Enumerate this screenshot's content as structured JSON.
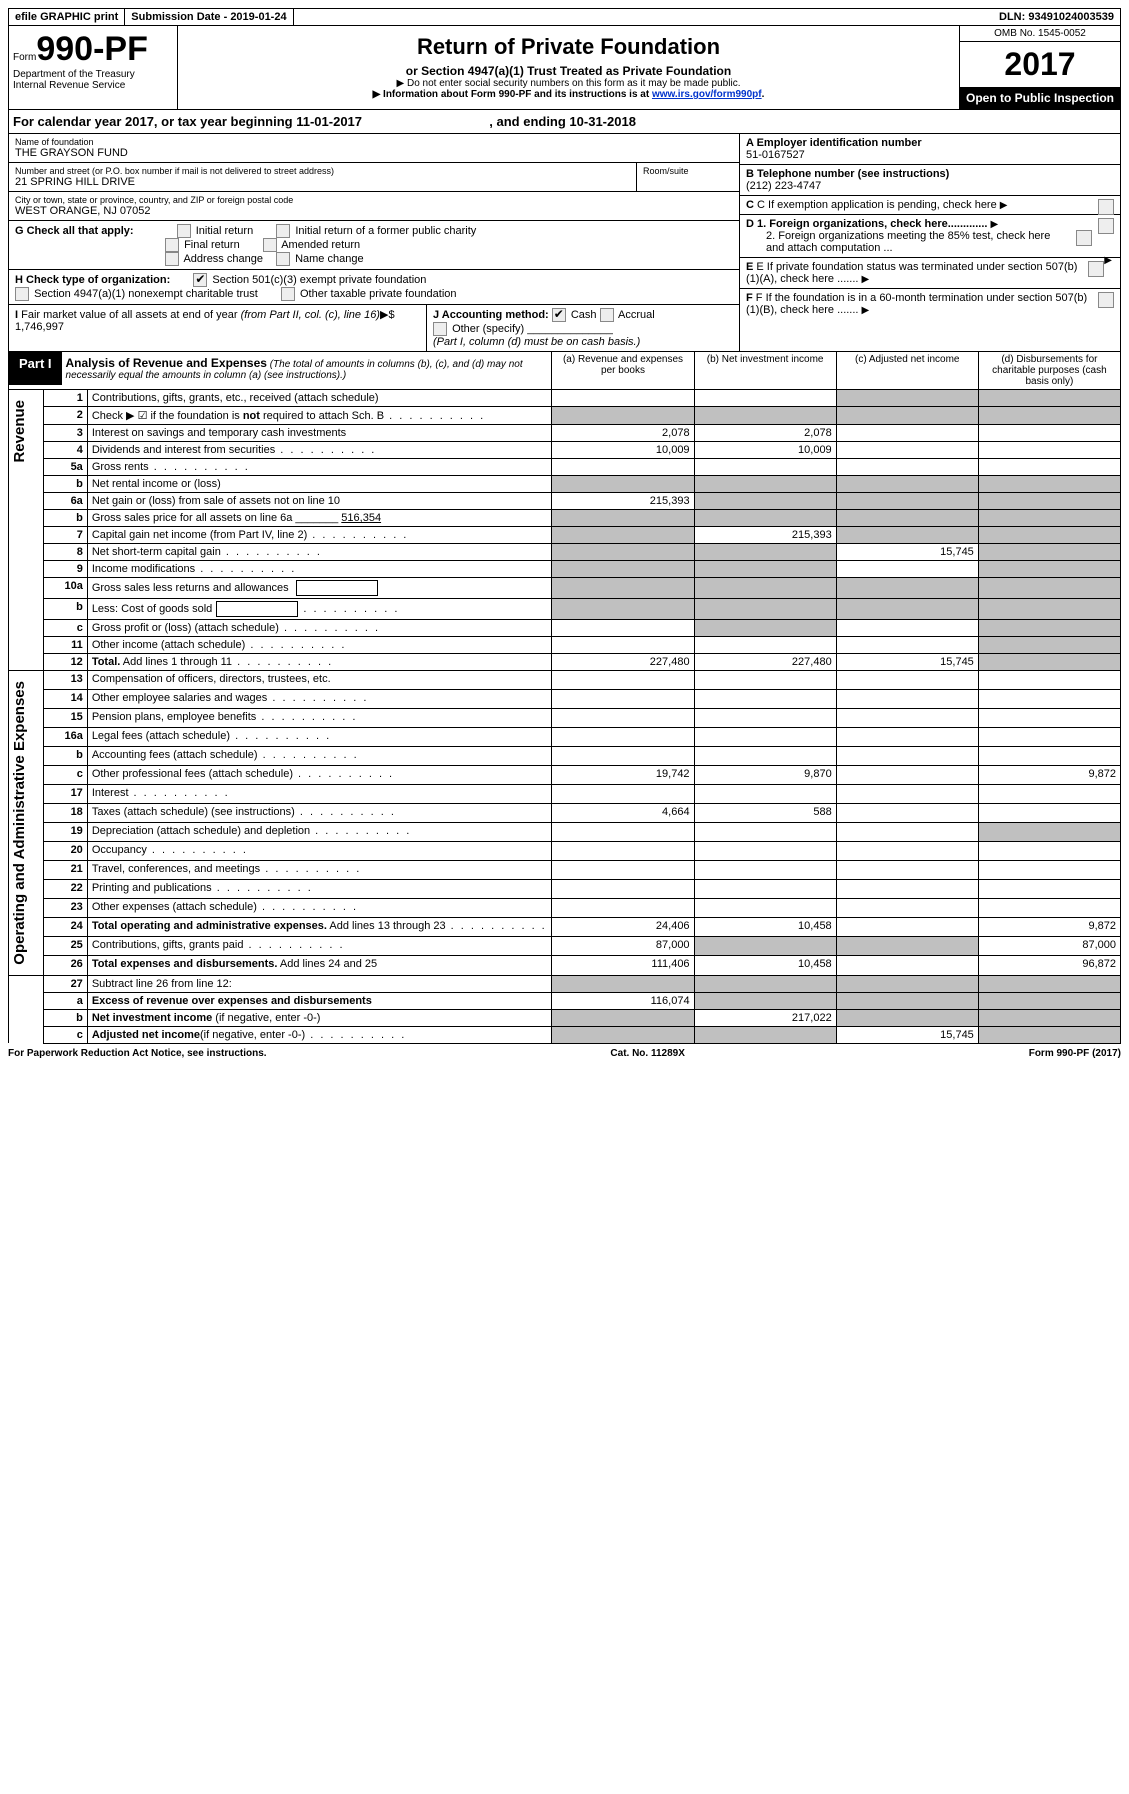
{
  "topbar": {
    "efile": "efile GRAPHIC print",
    "submission": "Submission Date - 2019-01-24",
    "dln": "DLN: 93491024003539"
  },
  "header": {
    "form_prefix": "Form",
    "form_number": "990-PF",
    "dept": "Department of the Treasury",
    "irs": "Internal Revenue Service",
    "title": "Return of Private Foundation",
    "subtitle": "or Section 4947(a)(1) Trust Treated as Private Foundation",
    "note1": "▶ Do not enter social security numbers on this form as it may be made public.",
    "note2_prefix": "▶ Information about Form 990-PF and its instructions is at ",
    "note2_link": "www.irs.gov/form990pf",
    "omb": "OMB No. 1545-0052",
    "year": "2017",
    "open": "Open to Public Inspection"
  },
  "calyear": {
    "text_a": "For calendar year 2017, or tax year beginning 11-01-2017",
    "text_b": ", and ending 10-31-2018"
  },
  "info": {
    "name_label": "Name of foundation",
    "name": "THE GRAYSON FUND",
    "addr_label": "Number and street (or P.O. box number if mail is not delivered to street address)",
    "room_label": "Room/suite",
    "addr": "21 SPRING HILL DRIVE",
    "city_label": "City or town, state or province, country, and ZIP or foreign postal code",
    "city": "WEST ORANGE, NJ  07052",
    "g_label": "G Check all that apply:",
    "g_opts": [
      "Initial return",
      "Initial return of a former public charity",
      "Final return",
      "Amended return",
      "Address change",
      "Name change"
    ],
    "h_label": "H Check type of organization:",
    "h_opt1": "Section 501(c)(3) exempt private foundation",
    "h_opt2": "Section 4947(a)(1) nonexempt charitable trust",
    "h_opt3": "Other taxable private foundation",
    "i_label": "I Fair market value of all assets at end of year (from Part II, col. (c), line 16)▶$  1,746,997",
    "j_label": "J Accounting method:",
    "j_cash": "Cash",
    "j_accrual": "Accrual",
    "j_other": "Other (specify)",
    "j_note": "(Part I, column (d) must be on cash basis.)",
    "a_label": "A Employer identification number",
    "a_val": "51-0167527",
    "b_label": "B Telephone number (see instructions)",
    "b_val": "(212) 223-4747",
    "c_label": "C If exemption application is pending, check here",
    "d1": "D 1. Foreign organizations, check here.............",
    "d2": "2. Foreign organizations meeting the 85% test, check here and attach computation ...",
    "e_label": "E  If private foundation status was terminated under section 507(b)(1)(A), check here .......",
    "f_label": "F  If the foundation is in a 60-month termination under section 507(b)(1)(B), check here .......",
    "part1_title": "Analysis of Revenue and Expenses",
    "part1_note": "(The total of amounts in columns (b), (c), and (d) may not necessarily equal the amounts in column (a) (see instructions).)",
    "col_a": "(a)   Revenue and expenses per books",
    "col_b": "(b)  Net investment income",
    "col_c": "(c)  Adjusted net income",
    "col_d": "(d)  Disbursements for charitable purposes (cash basis only)"
  },
  "sections": {
    "revenue": "Revenue",
    "expenses": "Operating and Administrative Expenses"
  },
  "rows": [
    {
      "n": "1",
      "d": "Contributions, gifts, grants, etc., received (attach schedule)",
      "a": "",
      "b": "",
      "c": "",
      "e": "",
      "grey_c": true,
      "grey_d": true
    },
    {
      "n": "2",
      "d": "Check ▶ ☑ if the foundation is <b>not</b> required to attach Sch. B",
      "dots": true,
      "a": "",
      "b": "",
      "c": "",
      "e": "",
      "grey_all": true
    },
    {
      "n": "3",
      "d": "Interest on savings and temporary cash investments",
      "a": "2,078",
      "b": "2,078",
      "c": "",
      "e": ""
    },
    {
      "n": "4",
      "d": "Dividends and interest from securities",
      "dots": true,
      "a": "10,009",
      "b": "10,009",
      "c": "",
      "e": ""
    },
    {
      "n": "5a",
      "d": "Gross rents",
      "dots": true,
      "a": "",
      "b": "",
      "c": "",
      "e": ""
    },
    {
      "n": "b",
      "d": "Net rental income or (loss)  ",
      "a": "",
      "b": "",
      "c": "",
      "e": "",
      "grey_all": true
    },
    {
      "n": "6a",
      "d": "Net gain or (loss) from sale of assets not on line 10",
      "a": "215,393",
      "b": "",
      "c": "",
      "e": "",
      "grey_b": true,
      "grey_c": true,
      "grey_d": true
    },
    {
      "n": "b",
      "d": "Gross sales price for all assets on line 6a _______ <u>516,354</u>",
      "a": "",
      "b": "",
      "c": "",
      "e": "",
      "grey_all": true
    },
    {
      "n": "7",
      "d": "Capital gain net income (from Part IV, line 2)",
      "dots": true,
      "a": "",
      "b": "215,393",
      "c": "",
      "e": "",
      "grey_a": true,
      "grey_c": true,
      "grey_d": true
    },
    {
      "n": "8",
      "d": "Net short-term capital gain",
      "dots": true,
      "a": "",
      "b": "",
      "c": "15,745",
      "e": "",
      "grey_a": true,
      "grey_b": true,
      "grey_d": true
    },
    {
      "n": "9",
      "d": "Income modifications",
      "dots": true,
      "a": "",
      "b": "",
      "c": "",
      "e": "",
      "grey_a": true,
      "grey_b": true,
      "grey_d": true
    },
    {
      "n": "10a",
      "d": "Gross sales less returns and allowances ",
      "box": true,
      "a": "",
      "b": "",
      "c": "",
      "e": "",
      "grey_all": true
    },
    {
      "n": "b",
      "d": "Less: Cost of goods sold",
      "dots": true,
      "box": true,
      "a": "",
      "b": "",
      "c": "",
      "e": "",
      "grey_all": true
    },
    {
      "n": "c",
      "d": "Gross profit or (loss) (attach schedule)",
      "dots": true,
      "a": "",
      "b": "",
      "c": "",
      "e": "",
      "grey_b": true,
      "grey_d": true
    },
    {
      "n": "11",
      "d": "Other income (attach schedule)",
      "dots": true,
      "a": "",
      "b": "",
      "c": "",
      "e": "",
      "grey_d": true
    },
    {
      "n": "12",
      "d": "<b>Total.</b> Add lines 1 through 11",
      "dots": true,
      "a": "227,480",
      "b": "227,480",
      "c": "15,745",
      "e": "",
      "grey_d": true
    }
  ],
  "exp_rows": [
    {
      "n": "13",
      "d": "Compensation of officers, directors, trustees, etc.",
      "a": "",
      "b": "",
      "c": "",
      "e": ""
    },
    {
      "n": "14",
      "d": "Other employee salaries and wages",
      "dots": true,
      "a": "",
      "b": "",
      "c": "",
      "e": ""
    },
    {
      "n": "15",
      "d": "Pension plans, employee benefits",
      "dots": true,
      "a": "",
      "b": "",
      "c": "",
      "e": ""
    },
    {
      "n": "16a",
      "d": "Legal fees (attach schedule)",
      "dots": true,
      "a": "",
      "b": "",
      "c": "",
      "e": ""
    },
    {
      "n": "b",
      "d": "Accounting fees (attach schedule)",
      "dots": true,
      "a": "",
      "b": "",
      "c": "",
      "e": ""
    },
    {
      "n": "c",
      "d": "Other professional fees (attach schedule)",
      "dots": true,
      "a": "19,742",
      "b": "9,870",
      "c": "",
      "e": "9,872"
    },
    {
      "n": "17",
      "d": "Interest",
      "dots": true,
      "a": "",
      "b": "",
      "c": "",
      "e": ""
    },
    {
      "n": "18",
      "d": "Taxes (attach schedule) (see instructions)",
      "dots": true,
      "a": "4,664",
      "b": "588",
      "c": "",
      "e": ""
    },
    {
      "n": "19",
      "d": "Depreciation (attach schedule) and depletion",
      "dots": true,
      "a": "",
      "b": "",
      "c": "",
      "e": "",
      "grey_d": true
    },
    {
      "n": "20",
      "d": "Occupancy",
      "dots": true,
      "a": "",
      "b": "",
      "c": "",
      "e": ""
    },
    {
      "n": "21",
      "d": "Travel, conferences, and meetings",
      "dots": true,
      "a": "",
      "b": "",
      "c": "",
      "e": ""
    },
    {
      "n": "22",
      "d": "Printing and publications",
      "dots": true,
      "a": "",
      "b": "",
      "c": "",
      "e": ""
    },
    {
      "n": "23",
      "d": "Other expenses (attach schedule)",
      "dots": true,
      "a": "",
      "b": "",
      "c": "",
      "e": ""
    },
    {
      "n": "24",
      "d": "<b>Total operating and administrative expenses.</b> Add lines 13 through 23",
      "dots": true,
      "a": "24,406",
      "b": "10,458",
      "c": "",
      "e": "9,872"
    },
    {
      "n": "25",
      "d": "Contributions, gifts, grants paid",
      "dots": true,
      "a": "87,000",
      "b": "",
      "c": "",
      "e": "87,000",
      "grey_b": true,
      "grey_c": true
    },
    {
      "n": "26",
      "d": "<b>Total expenses and disbursements.</b> Add lines 24 and 25",
      "a": "111,406",
      "b": "10,458",
      "c": "",
      "e": "96,872"
    }
  ],
  "bottom_rows": [
    {
      "n": "27",
      "d": "Subtract line 26 from line 12:",
      "a": "",
      "b": "",
      "c": "",
      "e": "",
      "grey_all": true
    },
    {
      "n": "a",
      "d": "<b>Excess of revenue over expenses and disbursements</b>",
      "a": "116,074",
      "b": "",
      "c": "",
      "e": "",
      "grey_b": true,
      "grey_c": true,
      "grey_d": true
    },
    {
      "n": "b",
      "d": "<b>Net investment income</b> (if negative, enter -0-)",
      "a": "",
      "b": "217,022",
      "c": "",
      "e": "",
      "grey_a": true,
      "grey_c": true,
      "grey_d": true
    },
    {
      "n": "c",
      "d": "<b>Adjusted net income</b>(if negative, enter -0-)",
      "dots": true,
      "a": "",
      "b": "",
      "c": "15,745",
      "e": "",
      "grey_a": true,
      "grey_b": true,
      "grey_d": true
    }
  ],
  "footer": {
    "left": "For Paperwork Reduction Act Notice, see instructions.",
    "mid": "Cat. No. 11289X",
    "right": "Form 990-PF (2017)"
  }
}
